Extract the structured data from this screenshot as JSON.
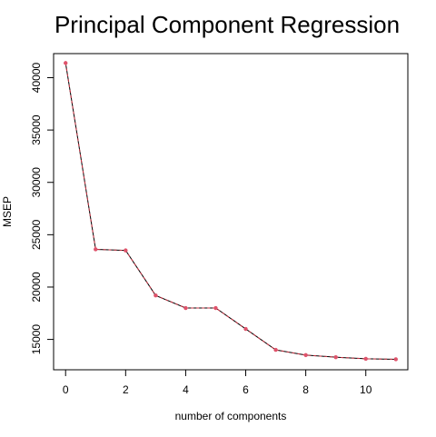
{
  "chart_data": {
    "type": "line",
    "title": "Principal Component Regression",
    "xlabel": "number of components",
    "ylabel": "MSEP",
    "xlim": [
      -0.4,
      11.4
    ],
    "ylim": [
      12100,
      42300
    ],
    "x_ticks": [
      0,
      2,
      4,
      6,
      8,
      10
    ],
    "y_ticks": [
      15000,
      20000,
      25000,
      30000,
      35000,
      40000
    ],
    "grid": false,
    "legend": "none",
    "series": [
      {
        "x": [
          0,
          1,
          2,
          3,
          4,
          5,
          6,
          7,
          8,
          9,
          10,
          11
        ],
        "values": [
          41400,
          23600,
          23500,
          19200,
          18000,
          18000,
          16000,
          14000,
          13500,
          13300,
          13150,
          13100
        ]
      }
    ],
    "colors": {
      "line": "#000000",
      "line_overlay": "#cc3344",
      "points": "#df536b"
    }
  }
}
